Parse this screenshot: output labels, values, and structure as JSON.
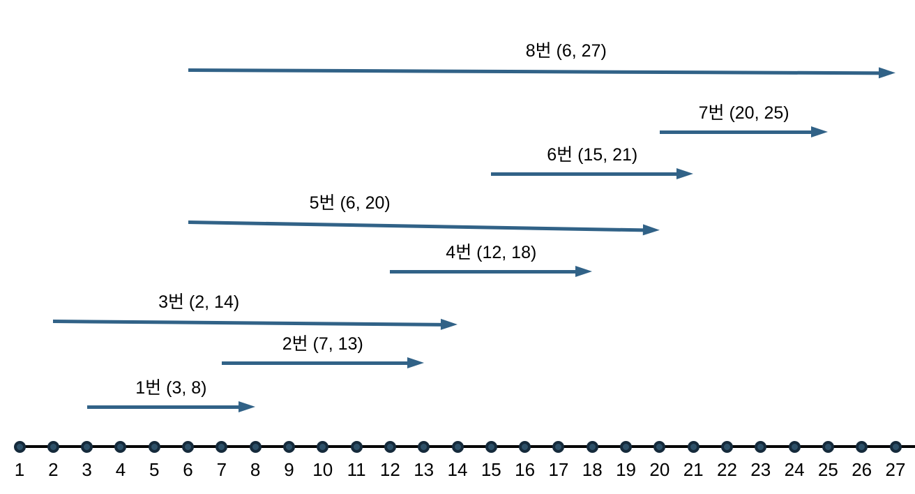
{
  "diagram": {
    "kind": "interval-number-line",
    "background_color": "#ffffff",
    "arrow_color": "#316287",
    "axis_line_color": "#000000",
    "dot_fill_color": "#2d5068",
    "dot_ring_color": "#152a3b",
    "text_color": "#000000"
  },
  "axis": {
    "min": 1,
    "max": 27,
    "tick_labels": [
      "1",
      "2",
      "3",
      "4",
      "5",
      "6",
      "7",
      "8",
      "9",
      "10",
      "11",
      "12",
      "13",
      "14",
      "15",
      "16",
      "17",
      "18",
      "19",
      "20",
      "21",
      "22",
      "23",
      "24",
      "25",
      "26",
      "27"
    ]
  },
  "intervals": [
    {
      "label": "1번 (3, 8)",
      "start": 3,
      "end": 8
    },
    {
      "label": "2번 (7, 13)",
      "start": 7,
      "end": 13
    },
    {
      "label": "3번 (2, 14)",
      "start": 2,
      "end": 14
    },
    {
      "label": "4번 (12, 18)",
      "start": 12,
      "end": 18
    },
    {
      "label": "5번 (6, 20)",
      "start": 6,
      "end": 20
    },
    {
      "label": "6번 (15, 21)",
      "start": 15,
      "end": 21
    },
    {
      "label": "7번 (20, 25)",
      "start": 20,
      "end": 25
    },
    {
      "label": "8번 (6, 27)",
      "start": 6,
      "end": 27
    }
  ]
}
